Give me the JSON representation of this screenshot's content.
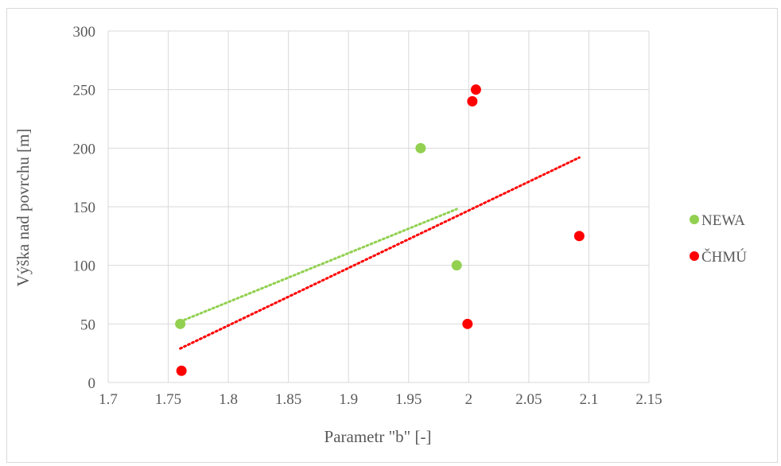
{
  "chart_data": {
    "type": "scatter",
    "title": "",
    "xlabel": "Parametr \"b\" [-]",
    "ylabel": "Výška nad povrchu [m]",
    "xlim": [
      1.7,
      2.15
    ],
    "ylim": [
      0,
      300
    ],
    "x_ticks": [
      1.7,
      1.75,
      1.8,
      1.85,
      1.9,
      1.95,
      2.0,
      2.05,
      2.1,
      2.15
    ],
    "x_tick_labels": [
      "1.7",
      "1.75",
      "1.8",
      "1.85",
      "1.9",
      "1.95",
      "2",
      "2.05",
      "2.1",
      "2.15"
    ],
    "y_ticks": [
      0,
      50,
      100,
      150,
      200,
      250,
      300
    ],
    "y_tick_labels": [
      "0",
      "50",
      "100",
      "150",
      "200",
      "250",
      "300"
    ],
    "grid": true,
    "legend_position": "right",
    "series": [
      {
        "name": "NEWA",
        "color": "#92d050",
        "points": [
          {
            "x": 1.76,
            "y": 50
          },
          {
            "x": 1.96,
            "y": 200
          },
          {
            "x": 1.99,
            "y": 100
          }
        ],
        "trendline": {
          "x": [
            1.76,
            1.99
          ],
          "y": [
            52,
            148
          ]
        }
      },
      {
        "name": "ČHMÚ",
        "color": "#ff0000",
        "points": [
          {
            "x": 1.761,
            "y": 10
          },
          {
            "x": 1.999,
            "y": 50
          },
          {
            "x": 2.003,
            "y": 240
          },
          {
            "x": 2.006,
            "y": 250
          },
          {
            "x": 2.092,
            "y": 125
          }
        ],
        "trendline": {
          "x": [
            1.76,
            2.092
          ],
          "y": [
            29,
            192
          ]
        }
      }
    ]
  }
}
